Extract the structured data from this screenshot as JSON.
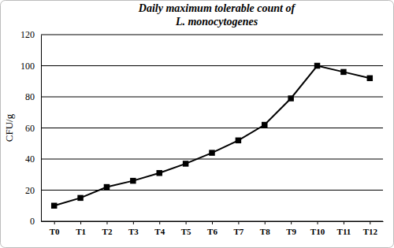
{
  "chart_data": {
    "type": "line",
    "title": "Daily maximum tolerable count of\nL. monocytogenes",
    "y_label": "CFU/g",
    "categories": [
      "T0",
      "T1",
      "T2",
      "T3",
      "T4",
      "T5",
      "T6",
      "T7",
      "T8",
      "T9",
      "T10",
      "T11",
      "T12"
    ],
    "values": [
      10,
      15,
      22,
      26,
      31,
      37,
      44,
      52,
      62,
      79,
      100,
      96,
      92
    ],
    "color": "#000000",
    "marker": "square",
    "line_style": "solid",
    "ylim": [
      0,
      120
    ],
    "yticks": [
      0,
      20,
      40,
      60,
      80,
      100,
      120
    ],
    "grid": true
  }
}
